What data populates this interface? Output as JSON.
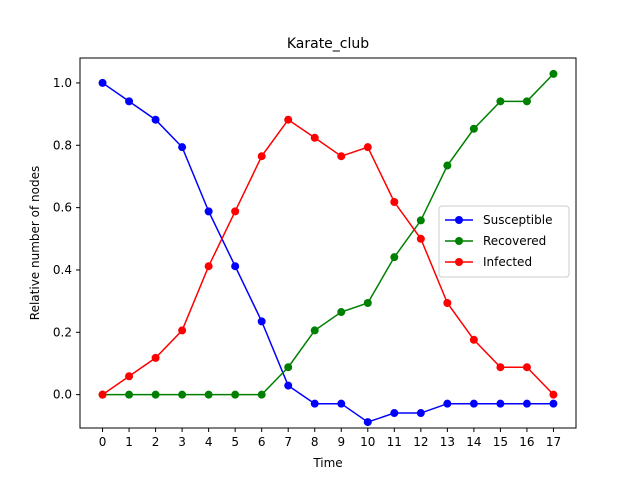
{
  "chart_data": {
    "type": "line",
    "title": "Karate_club",
    "xlabel": "Time",
    "ylabel": "Relative number of nodes",
    "x": [
      0,
      1,
      2,
      3,
      4,
      5,
      6,
      7,
      8,
      9,
      10,
      11,
      12,
      13,
      14,
      15,
      16,
      17
    ],
    "xlim": [
      -0.85,
      17.85
    ],
    "ylim": [
      -0.107,
      1.08
    ],
    "yticks": [
      0.0,
      0.2,
      0.4,
      0.6,
      0.8,
      1.0
    ],
    "ytick_labels": [
      "0.0",
      "0.2",
      "0.4",
      "0.6",
      "0.8",
      "1.0"
    ],
    "grid": false,
    "legend_position": "center-right",
    "series": [
      {
        "name": "Susceptible",
        "color": "#0000ff",
        "values": [
          1.0,
          0.941,
          0.882,
          0.794,
          0.588,
          0.412,
          0.235,
          0.029,
          -0.029,
          -0.029,
          -0.088,
          -0.059,
          -0.059,
          -0.029,
          -0.029,
          -0.029,
          -0.029,
          -0.029
        ]
      },
      {
        "name": "Recovered",
        "color": "#008000",
        "values": [
          0.0,
          0.0,
          0.0,
          0.0,
          0.0,
          0.0,
          0.0,
          0.088,
          0.206,
          0.265,
          0.294,
          0.441,
          0.559,
          0.735,
          0.853,
          0.941,
          0.941,
          1.029
        ]
      },
      {
        "name": "Infected",
        "color": "#ff0000",
        "values": [
          0.0,
          0.059,
          0.118,
          0.206,
          0.412,
          0.588,
          0.765,
          0.882,
          0.824,
          0.765,
          0.794,
          0.618,
          0.5,
          0.294,
          0.176,
          0.088,
          0.088,
          0.0
        ]
      }
    ]
  }
}
